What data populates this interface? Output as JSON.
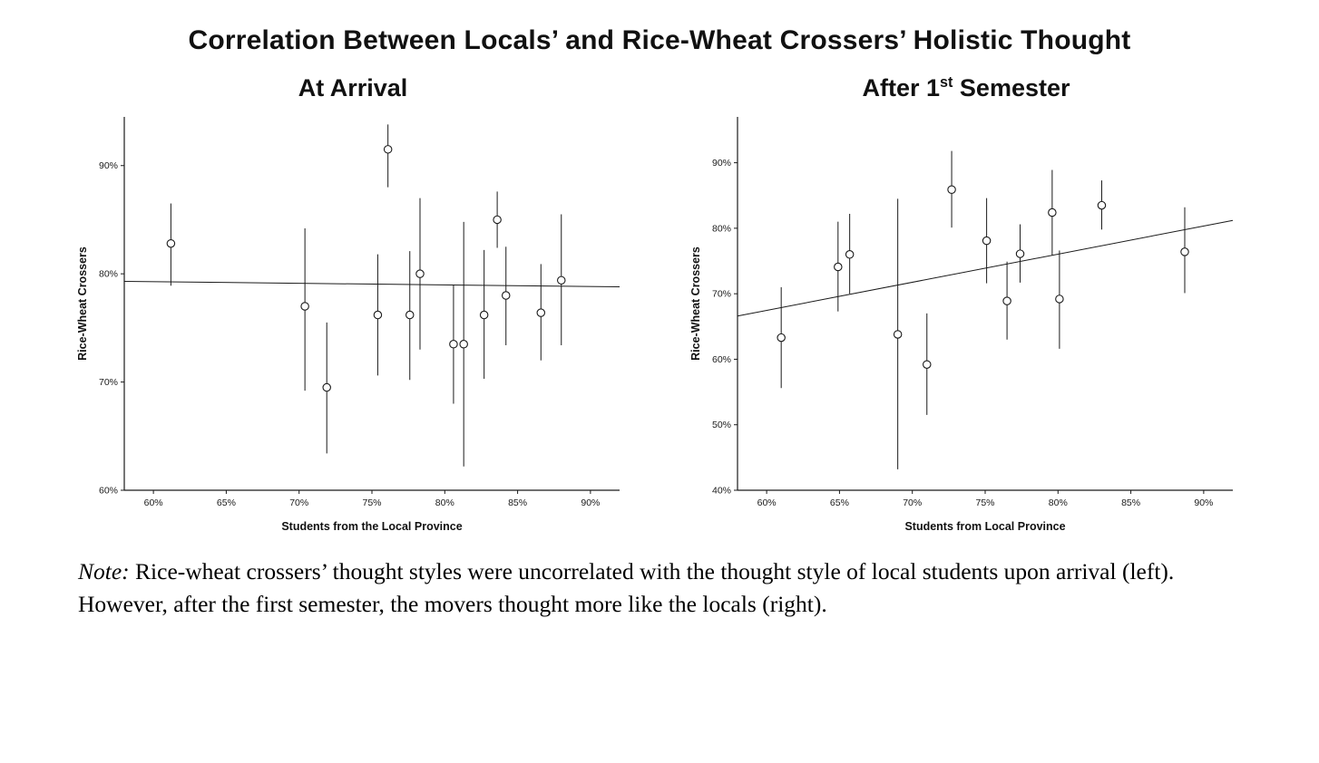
{
  "title": "Correlation Between Locals’ and Rice-Wheat Crossers’ Holistic Thought",
  "subtitles": {
    "left": "At Arrival",
    "right": {
      "prefix": "After 1",
      "sup": "st",
      "suffix": " Semester"
    }
  },
  "note": {
    "label": "Note:",
    "text": " Rice-wheat crossers’ thought styles were uncorrelated with the thought style of local students upon arrival (left). However, after the first semester, the movers thought more like the locals (right)."
  },
  "colors": {
    "axis": "#1a1a1a",
    "line": "#1a1a1a",
    "point_stroke": "#1a1a1a",
    "point_fill": "#ffffff",
    "background": "#ffffff"
  },
  "chart_data": [
    {
      "type": "scatter",
      "name": "at-arrival",
      "title": "At Arrival",
      "xlabel": "Students from the Local Province",
      "ylabel": "Rice-Wheat Crossers",
      "xlim": [
        58,
        92
      ],
      "ylim": [
        60,
        94.5
      ],
      "xticks": [
        60,
        65,
        70,
        75,
        80,
        85,
        90
      ],
      "yticks": [
        60,
        70,
        80,
        90
      ],
      "grid": false,
      "legend": "none",
      "fit_line": {
        "x": [
          58,
          92
        ],
        "y": [
          79.3,
          78.8
        ]
      },
      "points": [
        {
          "x": 61.2,
          "y": 82.8,
          "lo": 78.9,
          "hi": 86.5
        },
        {
          "x": 70.4,
          "y": 77.0,
          "lo": 69.2,
          "hi": 84.2
        },
        {
          "x": 71.9,
          "y": 69.5,
          "lo": 63.4,
          "hi": 75.5
        },
        {
          "x": 75.4,
          "y": 76.2,
          "lo": 70.6,
          "hi": 81.8
        },
        {
          "x": 76.1,
          "y": 91.5,
          "lo": 88.0,
          "hi": 93.8
        },
        {
          "x": 77.6,
          "y": 76.2,
          "lo": 70.2,
          "hi": 82.1
        },
        {
          "x": 78.3,
          "y": 80.0,
          "lo": 73.0,
          "hi": 87.0
        },
        {
          "x": 80.6,
          "y": 73.5,
          "lo": 68.0,
          "hi": 79.0
        },
        {
          "x": 81.3,
          "y": 73.5,
          "lo": 62.2,
          "hi": 84.8
        },
        {
          "x": 82.7,
          "y": 76.2,
          "lo": 70.3,
          "hi": 82.2
        },
        {
          "x": 83.6,
          "y": 85.0,
          "lo": 82.4,
          "hi": 87.6
        },
        {
          "x": 84.2,
          "y": 78.0,
          "lo": 73.4,
          "hi": 82.5
        },
        {
          "x": 86.6,
          "y": 76.4,
          "lo": 72.0,
          "hi": 80.9
        },
        {
          "x": 88.0,
          "y": 79.4,
          "lo": 73.4,
          "hi": 85.5
        }
      ]
    },
    {
      "type": "scatter",
      "name": "after-1st-semester",
      "title": "After 1st Semester",
      "xlabel": "Students from Local Province",
      "ylabel": "Rice-Wheat Crossers",
      "xlim": [
        58,
        92
      ],
      "ylim": [
        40,
        97
      ],
      "xticks": [
        60,
        65,
        70,
        75,
        80,
        85,
        90
      ],
      "yticks": [
        40,
        50,
        60,
        70,
        80,
        90
      ],
      "grid": false,
      "legend": "none",
      "fit_line": {
        "x": [
          58,
          92
        ],
        "y": [
          66.6,
          81.2
        ]
      },
      "points": [
        {
          "x": 61.0,
          "y": 63.3,
          "lo": 55.6,
          "hi": 71.0
        },
        {
          "x": 64.9,
          "y": 74.1,
          "lo": 67.3,
          "hi": 81.0
        },
        {
          "x": 65.7,
          "y": 76.0,
          "lo": 70.0,
          "hi": 82.2
        },
        {
          "x": 69.0,
          "y": 63.8,
          "lo": 43.2,
          "hi": 84.5
        },
        {
          "x": 71.0,
          "y": 59.2,
          "lo": 51.5,
          "hi": 67.0
        },
        {
          "x": 72.7,
          "y": 85.9,
          "lo": 80.1,
          "hi": 91.8
        },
        {
          "x": 75.1,
          "y": 78.1,
          "lo": 71.6,
          "hi": 84.6
        },
        {
          "x": 76.5,
          "y": 68.9,
          "lo": 63.0,
          "hi": 74.9
        },
        {
          "x": 77.4,
          "y": 76.1,
          "lo": 71.7,
          "hi": 80.6
        },
        {
          "x": 79.6,
          "y": 82.4,
          "lo": 75.9,
          "hi": 88.9
        },
        {
          "x": 80.1,
          "y": 69.2,
          "lo": 61.6,
          "hi": 76.6
        },
        {
          "x": 83.0,
          "y": 83.5,
          "lo": 79.8,
          "hi": 87.3
        },
        {
          "x": 88.7,
          "y": 76.4,
          "lo": 70.1,
          "hi": 83.2
        }
      ]
    }
  ]
}
